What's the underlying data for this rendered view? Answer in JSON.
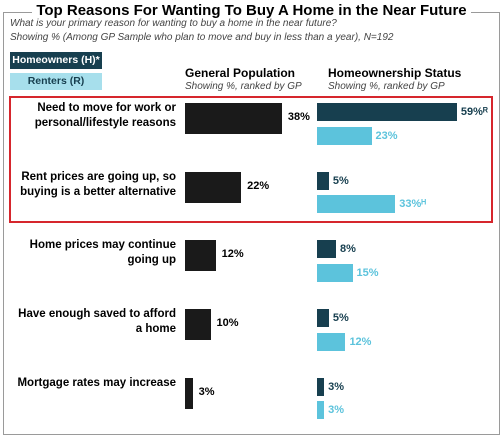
{
  "chart_data": {
    "type": "bar",
    "title": "Top Reasons For Wanting To Buy A Home in the Near Future",
    "subtitle": [
      "What is your primary reason for wanting to buy a home in the near future?",
      "Showing % (Among GP Sample who plan to move and buy in less than a year), N=192"
    ],
    "panels": [
      {
        "title": "General Population",
        "subtitle": "Showing %, ranked by GP"
      },
      {
        "title": "Homeownership Status",
        "subtitle": "Showing %, ranked by GP"
      }
    ],
    "categories": [
      "Need to move for work or personal/lifestyle reasons",
      "Rent prices are going up, so buying is a better alternative",
      "Home prices may continue going up",
      "Have enough saved to afford a home",
      "Mortgage rates may increase"
    ],
    "series": [
      {
        "name": "General Population",
        "color": "#1a1a1a",
        "values": [
          38,
          22,
          12,
          10,
          3
        ],
        "value_labels": [
          "38%",
          "22%",
          "12%",
          "10%",
          "3%"
        ]
      },
      {
        "name": "Homeowners (H)*",
        "color": "#173f4f",
        "values": [
          59,
          5,
          8,
          5,
          3
        ],
        "value_labels": [
          "59%ᴿ",
          "5%",
          "8%",
          "5%",
          "3%"
        ]
      },
      {
        "name": "Renters (R)",
        "color": "#5cc3dc",
        "values": [
          23,
          33,
          15,
          12,
          3
        ],
        "value_labels": [
          "23%",
          "33%ᴴ",
          "15%",
          "12%",
          "3%"
        ]
      }
    ]
  }
}
